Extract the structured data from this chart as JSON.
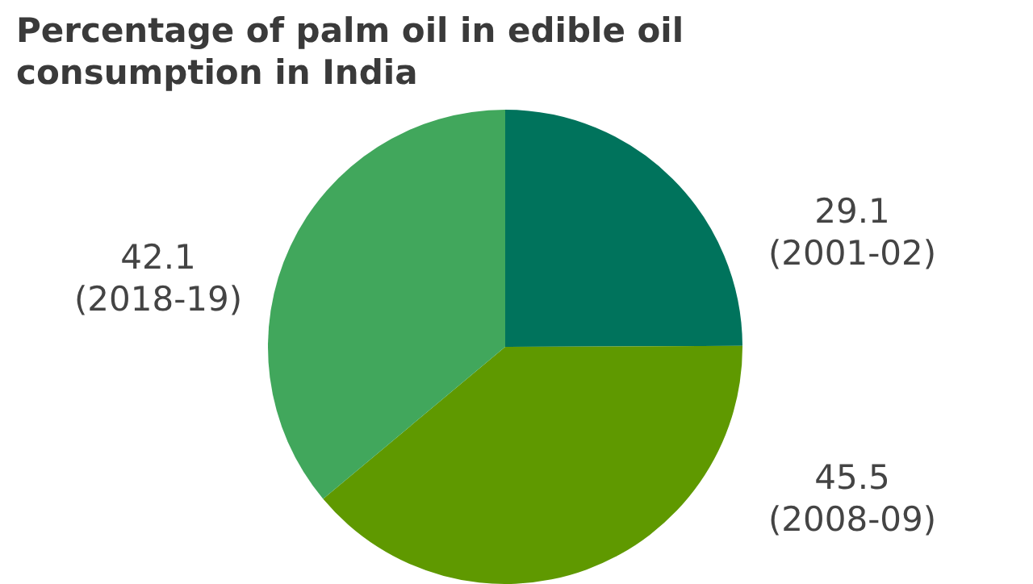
{
  "chart_data": {
    "type": "pie",
    "title": "Percentage of palm oil in edible oil consumption in India",
    "categories": [
      "(2001-02)",
      "(2008-09)",
      "(2018-19)"
    ],
    "values": [
      29.1,
      45.5,
      42.1
    ],
    "colors": [
      "#00735c",
      "#5f9900",
      "#41a75c"
    ],
    "data_labels": true,
    "legend": false
  }
}
